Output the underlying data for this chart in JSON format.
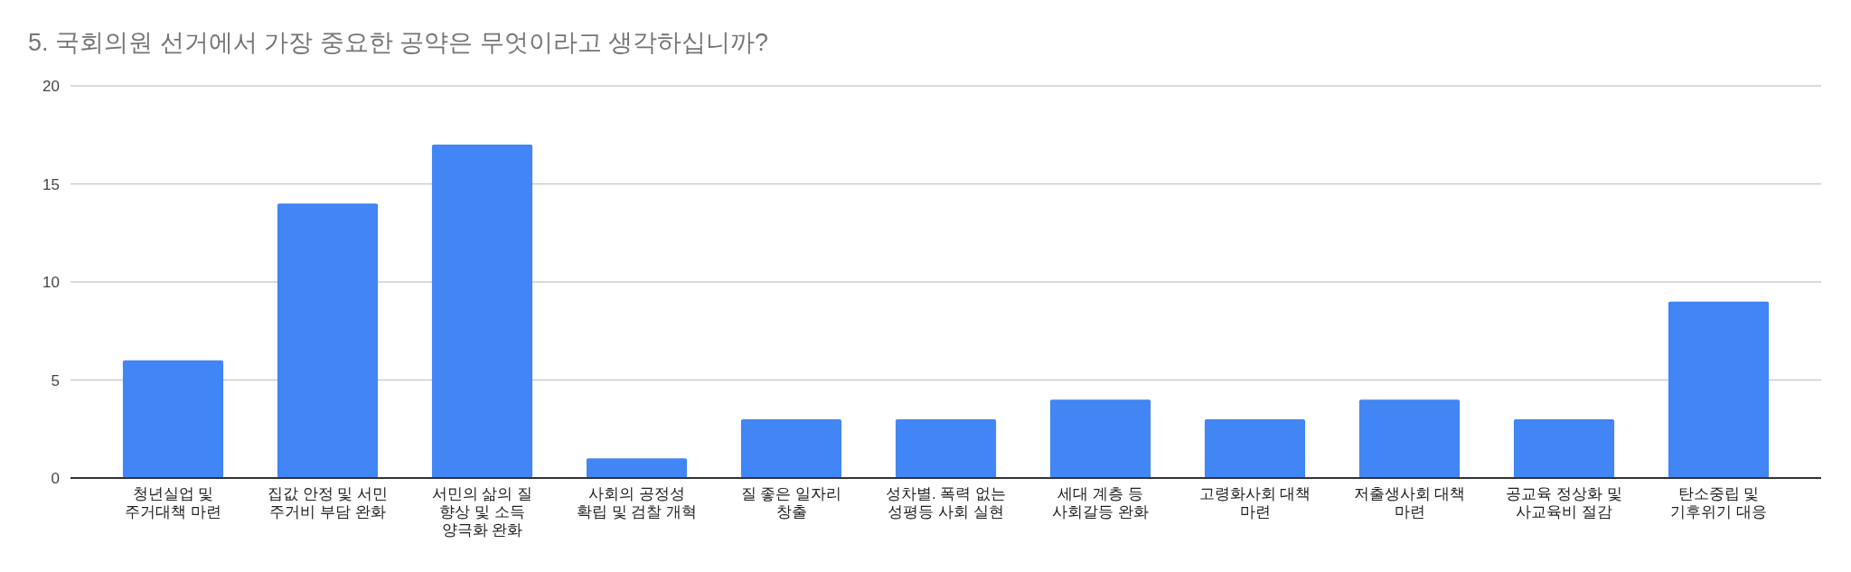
{
  "chart_data": {
    "type": "bar",
    "title": "5. 국회의원 선거에서 가장 중요한 공약은 무엇이라고 생각하십니까?",
    "categories": [
      "청년실업 및\n주거대책 마련",
      "집값 안정 및 서민\n주거비 부담 완화",
      "서민의 삶의 질\n향상 및 소득\n양극화 완화",
      "사회의 공정성\n확립 및 검찰 개혁",
      "질 좋은 일자리\n창출",
      "성차별. 폭력 없는\n성평등 사회 실현",
      "세대 계층 등\n사회갈등 완화",
      "고령화사회 대책\n마련",
      "저출생사회 대책\n마련",
      "공교육 정상화 및\n사교육비 절감",
      "탄소중립 및\n기후위기 대응"
    ],
    "values": [
      6,
      14,
      17,
      1,
      3,
      3,
      4,
      3,
      4,
      3,
      9
    ],
    "color": "#4285f4",
    "ylim": [
      0,
      20
    ],
    "yticks": [
      0,
      5,
      10,
      15,
      20
    ],
    "grid": "y"
  }
}
